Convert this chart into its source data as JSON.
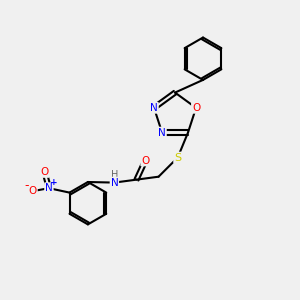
{
  "bg_color": "#f0f0f0",
  "bond_color": "#000000",
  "atom_colors": {
    "N": "#0000ff",
    "O": "#ff0000",
    "S": "#cccc00",
    "H": "#888888",
    "C": "#000000"
  },
  "figsize": [
    3.0,
    3.0
  ],
  "dpi": 100
}
